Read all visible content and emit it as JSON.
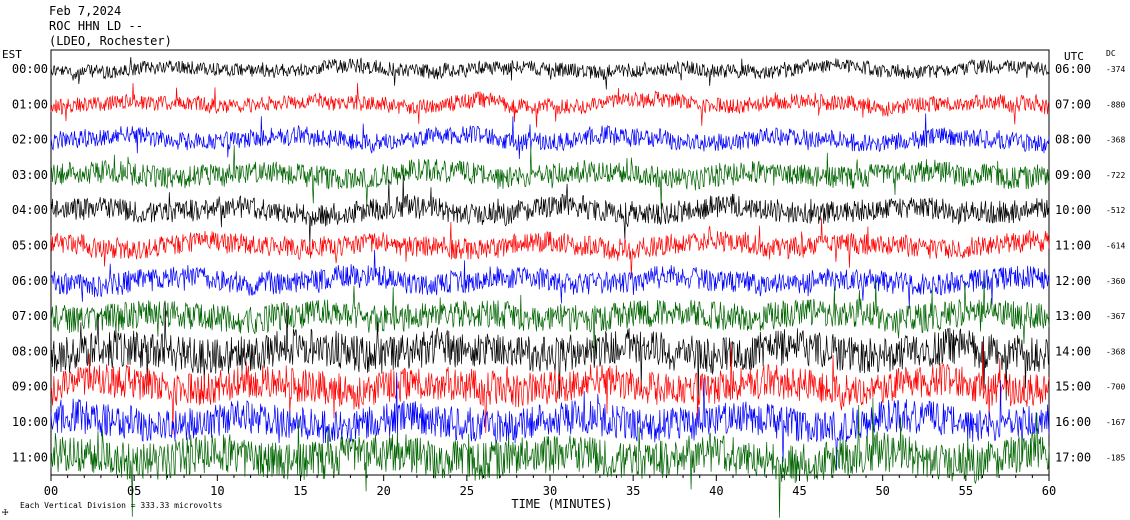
{
  "header": {
    "date": "Feb 7,2024",
    "station": "ROC HHN LD --",
    "network": "(LDEO, Rochester)"
  },
  "chart_data": {
    "type": "line",
    "title": "Feb 7,2024",
    "left_axis_label": "EST",
    "right_axis_label": "UTC",
    "dc_label": "DC",
    "xlabel": "TIME (MINUTES)",
    "xlim": [
      0,
      60
    ],
    "x_ticks": [
      "00",
      "05",
      "10",
      "15",
      "20",
      "25",
      "30",
      "35",
      "40",
      "45",
      "50",
      "55",
      "60"
    ],
    "trace_colors": [
      "#000000",
      "#ff0000",
      "#0000ff",
      "#006400"
    ],
    "rows": [
      {
        "est": "00:00",
        "utc": "06:00",
        "dc": "-374",
        "color": "#000000",
        "amplitude": 1.0
      },
      {
        "est": "01:00",
        "utc": "07:00",
        "dc": "-880",
        "color": "#ff0000",
        "amplitude": 1.1
      },
      {
        "est": "02:00",
        "utc": "08:00",
        "dc": "-368",
        "color": "#0000ff",
        "amplitude": 1.3
      },
      {
        "est": "03:00",
        "utc": "09:00",
        "dc": "-722",
        "color": "#006400",
        "amplitude": 1.6
      },
      {
        "est": "04:00",
        "utc": "10:00",
        "dc": "-512",
        "color": "#000000",
        "amplitude": 1.6
      },
      {
        "est": "05:00",
        "utc": "11:00",
        "dc": "-614",
        "color": "#ff0000",
        "amplitude": 1.5
      },
      {
        "est": "06:00",
        "utc": "12:00",
        "dc": "-360",
        "color": "#0000ff",
        "amplitude": 1.6
      },
      {
        "est": "07:00",
        "utc": "13:00",
        "dc": "-367",
        "color": "#006400",
        "amplitude": 2.0
      },
      {
        "est": "08:00",
        "utc": "14:00",
        "dc": "-368",
        "color": "#000000",
        "amplitude": 2.6
      },
      {
        "est": "09:00",
        "utc": "15:00",
        "dc": "-700",
        "color": "#ff0000",
        "amplitude": 2.4
      },
      {
        "est": "10:00",
        "utc": "16:00",
        "dc": "-167",
        "color": "#0000ff",
        "amplitude": 2.4
      },
      {
        "est": "11:00",
        "utc": "17:00",
        "dc": "-185",
        "color": "#006400",
        "amplitude": 2.8
      }
    ],
    "scale_note": "Each Vertical Division = 333.33 microvolts"
  }
}
